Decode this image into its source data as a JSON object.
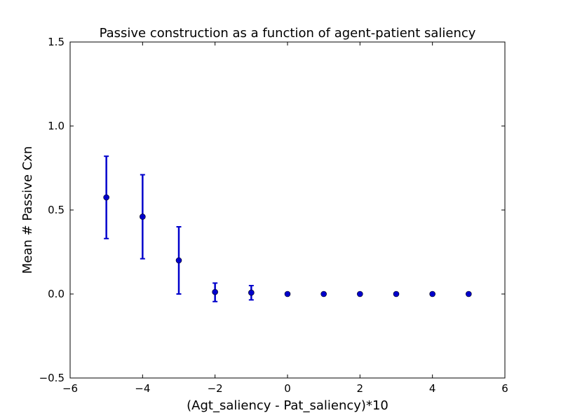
{
  "chart_data": {
    "type": "scatter",
    "title": "Passive construction as a function of agent-patient saliency",
    "xlabel": "(Agt_saliency - Pat_saliency)*10",
    "ylabel": "Mean # Passive Cxn",
    "xlim": [
      -6,
      6
    ],
    "ylim": [
      -0.5,
      1.5
    ],
    "xticks": [
      -6,
      -4,
      -2,
      0,
      2,
      4,
      6
    ],
    "xtick_labels": [
      "−6",
      "−4",
      "−2",
      "0",
      "2",
      "4",
      "6"
    ],
    "yticks": [
      -0.5,
      0.0,
      0.5,
      1.0,
      1.5
    ],
    "ytick_labels": [
      "−0.5",
      "0.0",
      "0.5",
      "1.0",
      "1.5"
    ],
    "grid": false,
    "legend": "none",
    "color": "#0000cc",
    "series": [
      {
        "x": [
          -5,
          -4,
          -3,
          -2,
          -1,
          0,
          1,
          2,
          3,
          4,
          5
        ],
        "y": [
          0.575,
          0.46,
          0.2,
          0.012,
          0.008,
          0,
          0,
          0,
          0,
          0,
          0
        ],
        "yerr_low": [
          0.33,
          0.21,
          0.0,
          -0.045,
          -0.035,
          0,
          0,
          0,
          0,
          0,
          0
        ],
        "yerr_high": [
          0.82,
          0.71,
          0.4,
          0.065,
          0.05,
          0,
          0,
          0,
          0,
          0,
          0
        ]
      }
    ]
  }
}
